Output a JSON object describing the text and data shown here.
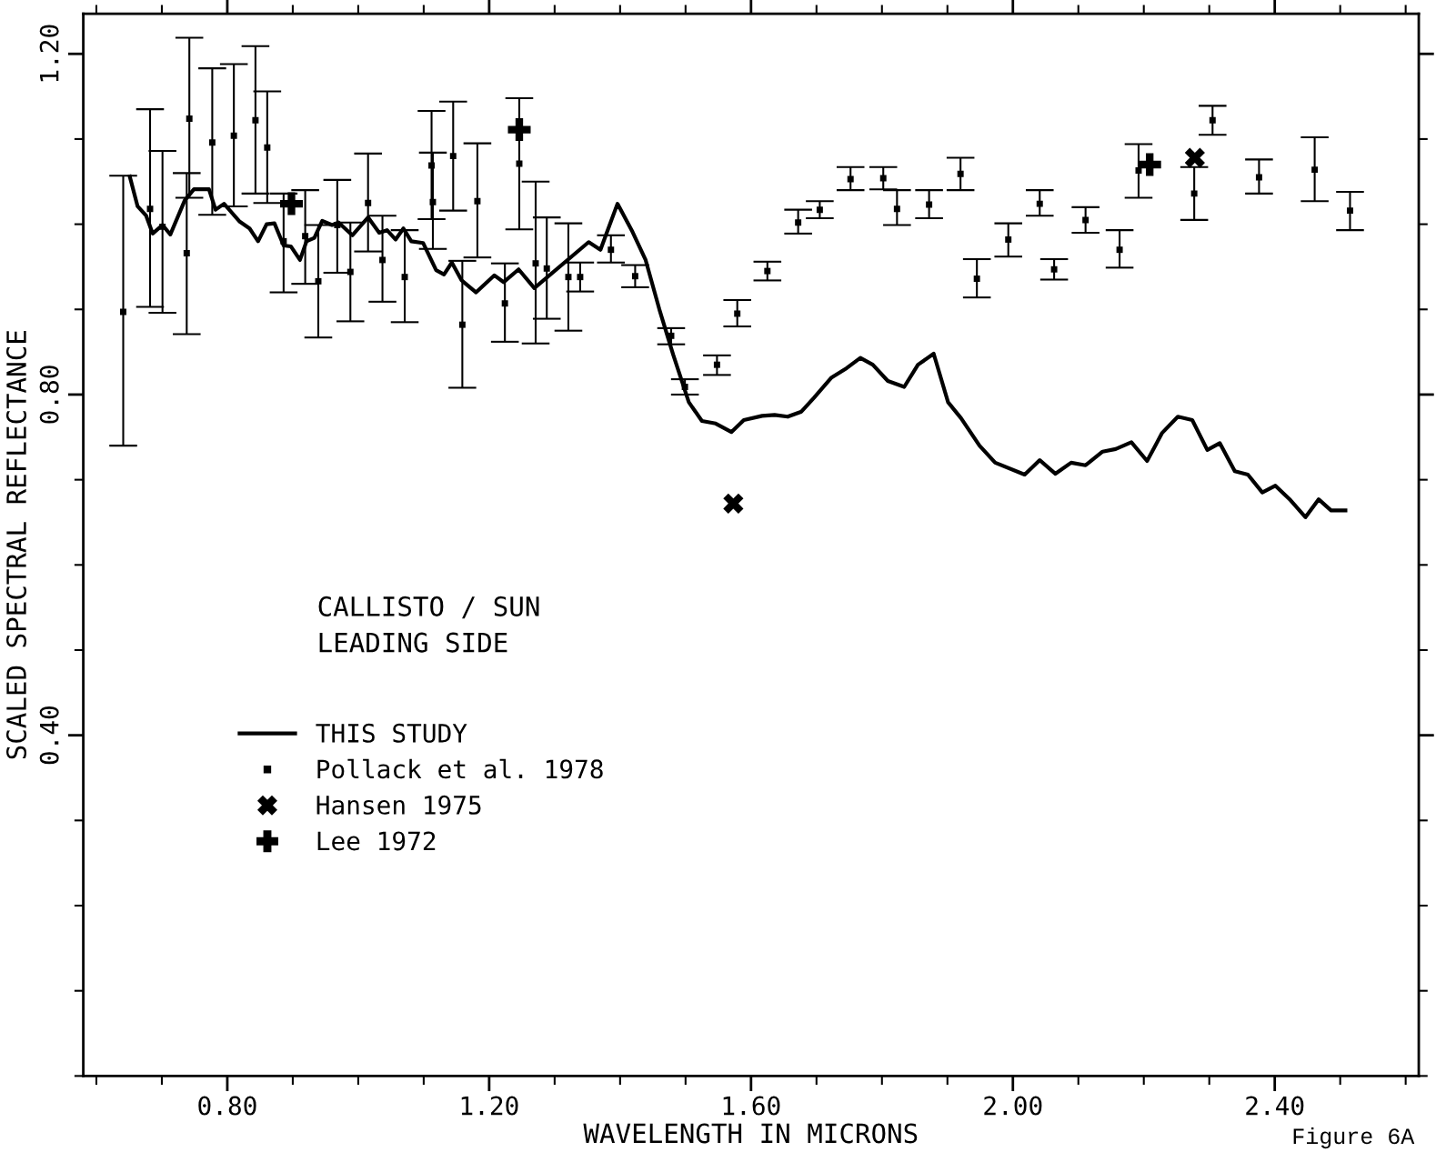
{
  "chart_data": {
    "type": "scatter",
    "xlabel": "WAVELENGTH IN MICRONS",
    "ylabel": "SCALED SPECTRAL REFLECTANCE",
    "xlim": [
      0.58,
      2.62
    ],
    "ylim": [
      0,
      1.247
    ],
    "xticks": [
      {
        "value": 0.8,
        "label": "0.80"
      },
      {
        "value": 1.2,
        "label": "1.20"
      },
      {
        "value": 1.6,
        "label": "1.60"
      },
      {
        "value": 2.0,
        "label": "2.00"
      },
      {
        "value": 2.4,
        "label": "2.40"
      }
    ],
    "yticks": [
      {
        "value": 0.4,
        "label": "0.40"
      },
      {
        "value": 0.8,
        "label": "0.80"
      },
      {
        "value": 1.2,
        "label": "1.20"
      }
    ],
    "grid": false,
    "legend": "center left",
    "annotations": [
      "CALLISTO / SUN",
      "LEADING SIDE",
      "Figure 6A"
    ],
    "series": [
      {
        "name": "THIS STUDY",
        "type": "line",
        "color": "#000000",
        "line_style": "solid",
        "marker": "none",
        "x": [
          0.651,
          0.663,
          0.676,
          0.686,
          0.701,
          0.713,
          0.735,
          0.749,
          0.772,
          0.782,
          0.795,
          0.819,
          0.834,
          0.847,
          0.86,
          0.872,
          0.886,
          0.897,
          0.911,
          0.921,
          0.933,
          0.945,
          0.96,
          0.97,
          0.991,
          1.015,
          1.032,
          1.044,
          1.057,
          1.069,
          1.081,
          1.099,
          1.119,
          1.131,
          1.143,
          1.158,
          1.18,
          1.208,
          1.222,
          1.245,
          1.269,
          1.352,
          1.37,
          1.396,
          1.419,
          1.439,
          1.46,
          1.481,
          1.505,
          1.525,
          1.546,
          1.57,
          1.589,
          1.617,
          1.636,
          1.656,
          1.677,
          1.696,
          1.723,
          1.746,
          1.767,
          1.786,
          1.809,
          1.834,
          1.855,
          1.879,
          1.901,
          1.921,
          1.949,
          1.973,
          2.018,
          2.041,
          2.065,
          2.089,
          2.111,
          2.137,
          2.157,
          2.181,
          2.205,
          2.228,
          2.252,
          2.274,
          2.297,
          2.316,
          2.339,
          2.359,
          2.381,
          2.401,
          2.424,
          2.447,
          2.467,
          2.486,
          2.508
        ],
        "values": [
          1.056,
          1.021,
          1.01,
          0.989,
          0.999,
          0.988,
          1.028,
          1.041,
          1.041,
          1.017,
          1.024,
          1.003,
          0.995,
          0.98,
          1.0,
          1.001,
          0.975,
          0.974,
          0.958,
          0.98,
          0.984,
          1.004,
          0.999,
          1.002,
          0.987,
          1.008,
          0.99,
          0.993,
          0.982,
          0.995,
          0.98,
          0.978,
          0.946,
          0.941,
          0.955,
          0.934,
          0.92,
          0.94,
          0.932,
          0.947,
          0.925,
          0.979,
          0.97,
          1.024,
          0.991,
          0.958,
          0.9,
          0.847,
          0.791,
          0.769,
          0.766,
          0.756,
          0.77,
          0.775,
          0.776,
          0.774,
          0.78,
          0.796,
          0.82,
          0.831,
          0.843,
          0.835,
          0.816,
          0.809,
          0.835,
          0.848,
          0.791,
          0.772,
          0.74,
          0.72,
          0.706,
          0.723,
          0.707,
          0.72,
          0.717,
          0.733,
          0.736,
          0.744,
          0.722,
          0.755,
          0.774,
          0.77,
          0.735,
          0.743,
          0.71,
          0.706,
          0.685,
          0.693,
          0.676,
          0.656,
          0.677,
          0.664,
          0.664
        ]
      },
      {
        "name": "Pollack et al. 1978",
        "color": "#000000",
        "marker": "square",
        "x": [
          0.641,
          0.682,
          0.701,
          0.738,
          0.742,
          0.777,
          0.81,
          0.843,
          0.861,
          0.886,
          0.919,
          0.939,
          0.968,
          0.988,
          1.015,
          1.037,
          1.071,
          1.112,
          1.114,
          1.145,
          1.159,
          1.182,
          1.224,
          1.246,
          1.271,
          1.288,
          1.321,
          1.339,
          1.386,
          1.423,
          1.478,
          1.499,
          1.548,
          1.579,
          1.625,
          1.672,
          1.705,
          1.752,
          1.802,
          1.823,
          1.872,
          1.92,
          1.945,
          1.993,
          2.041,
          2.063,
          2.111,
          2.163,
          2.192,
          2.277,
          2.305,
          2.376,
          2.461,
          2.515
        ],
        "values": [
          0.897,
          1.018,
          0.997,
          0.966,
          1.124,
          1.096,
          1.104,
          1.122,
          1.09,
          0.98,
          0.986,
          0.933,
          0.999,
          0.944,
          1.025,
          0.958,
          0.938,
          1.069,
          1.026,
          1.08,
          0.882,
          1.027,
          0.907,
          1.071,
          0.954,
          0.948,
          0.938,
          0.938,
          0.97,
          0.939,
          0.869,
          0.809,
          0.835,
          0.895,
          0.945,
          1.002,
          1.017,
          1.053,
          1.054,
          1.018,
          1.023,
          1.059,
          0.936,
          0.982,
          1.024,
          0.947,
          1.005,
          0.97,
          1.063,
          1.036,
          1.122,
          1.055,
          1.064,
          1.016
        ],
        "errors": [
          [
            0.74,
            1.057
          ],
          [
            0.903,
            1.135
          ],
          [
            0.896,
            1.086
          ],
          [
            0.871,
            1.06
          ],
          [
            1.031,
            1.219
          ],
          [
            1.011,
            1.183
          ],
          [
            1.021,
            1.188
          ],
          [
            1.036,
            1.209
          ],
          [
            1.025,
            1.156
          ],
          [
            0.92,
            1.036
          ],
          [
            0.93,
            1.04
          ],
          [
            0.867,
            0.999
          ],
          [
            0.943,
            1.052
          ],
          [
            0.886,
            1.002
          ],
          [
            0.968,
            1.083
          ],
          [
            0.909,
            1.01
          ],
          [
            0.885,
            0.993
          ],
          [
            1.006,
            1.133
          ],
          [
            0.971,
            1.084
          ],
          [
            1.016,
            1.144
          ],
          [
            0.808,
            0.957
          ],
          [
            0.961,
            1.095
          ],
          [
            0.862,
            0.954
          ],
          [
            0.994,
            1.148
          ],
          [
            0.86,
            1.05
          ],
          [
            0.889,
            1.008
          ],
          [
            0.875,
            1.001
          ],
          [
            0.921,
            0.955
          ],
          [
            0.955,
            0.987
          ],
          [
            0.926,
            0.952
          ],
          [
            0.859,
            0.878
          ],
          [
            0.8,
            0.818
          ],
          [
            0.823,
            0.846
          ],
          [
            0.88,
            0.911
          ],
          [
            0.934,
            0.956
          ],
          [
            0.989,
            1.017
          ],
          [
            1.007,
            1.027
          ],
          [
            1.04,
            1.067
          ],
          [
            1.041,
            1.067
          ],
          [
            0.999,
            1.04
          ],
          [
            1.007,
            1.04
          ],
          [
            1.04,
            1.078
          ],
          [
            0.914,
            0.959
          ],
          [
            0.962,
            1.001
          ],
          [
            1.01,
            1.04
          ],
          [
            0.935,
            0.959
          ],
          [
            0.99,
            1.02
          ],
          [
            0.949,
            0.993
          ],
          [
            1.031,
            1.094
          ],
          [
            1.005,
            1.067
          ],
          [
            1.105,
            1.139
          ],
          [
            1.036,
            1.076
          ],
          [
            1.027,
            1.102
          ],
          [
            0.993,
            1.038
          ]
        ]
      },
      {
        "name": "Hansen 1975",
        "color": "#000000",
        "marker": "cross",
        "x": [
          1.573,
          2.278
        ],
        "values": [
          0.672,
          1.078
        ]
      },
      {
        "name": "Lee 1972",
        "color": "#000000",
        "marker": "plus",
        "x": [
          0.898,
          1.246,
          2.209
        ],
        "values": [
          1.024,
          1.111,
          1.07
        ]
      }
    ]
  }
}
